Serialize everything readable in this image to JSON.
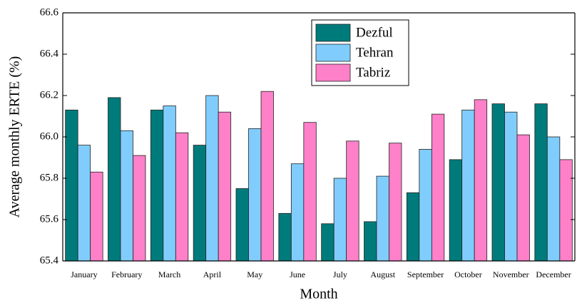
{
  "chart_data": {
    "type": "bar",
    "xlabel": "Month",
    "ylabel": "Average monthly ERTE (%)",
    "categories": [
      "January",
      "February",
      "March",
      "April",
      "May",
      "June",
      "July",
      "August",
      "September",
      "October",
      "November",
      "December"
    ],
    "series": [
      {
        "name": "Dezful",
        "color": "#007b7b",
        "values": [
          66.13,
          66.19,
          66.13,
          65.96,
          65.75,
          65.63,
          65.58,
          65.59,
          65.73,
          65.89,
          66.16,
          66.16
        ]
      },
      {
        "name": "Tehran",
        "color": "#80cdfd",
        "values": [
          65.96,
          66.03,
          66.15,
          66.2,
          66.04,
          65.87,
          65.8,
          65.81,
          65.94,
          66.13,
          66.12,
          66.0
        ]
      },
      {
        "name": "Tabriz",
        "color": "#fd80c8",
        "values": [
          65.83,
          65.91,
          66.02,
          66.12,
          66.22,
          66.07,
          65.98,
          65.97,
          66.11,
          66.18,
          66.01,
          65.89
        ]
      }
    ],
    "ylim": [
      65.4,
      66.6
    ],
    "yticks": [
      65.4,
      65.6,
      65.8,
      {
        "value": 66.0,
        "label": "66.0"
      },
      66.2,
      66.4,
      66.6
    ],
    "legend": "upper center"
  }
}
